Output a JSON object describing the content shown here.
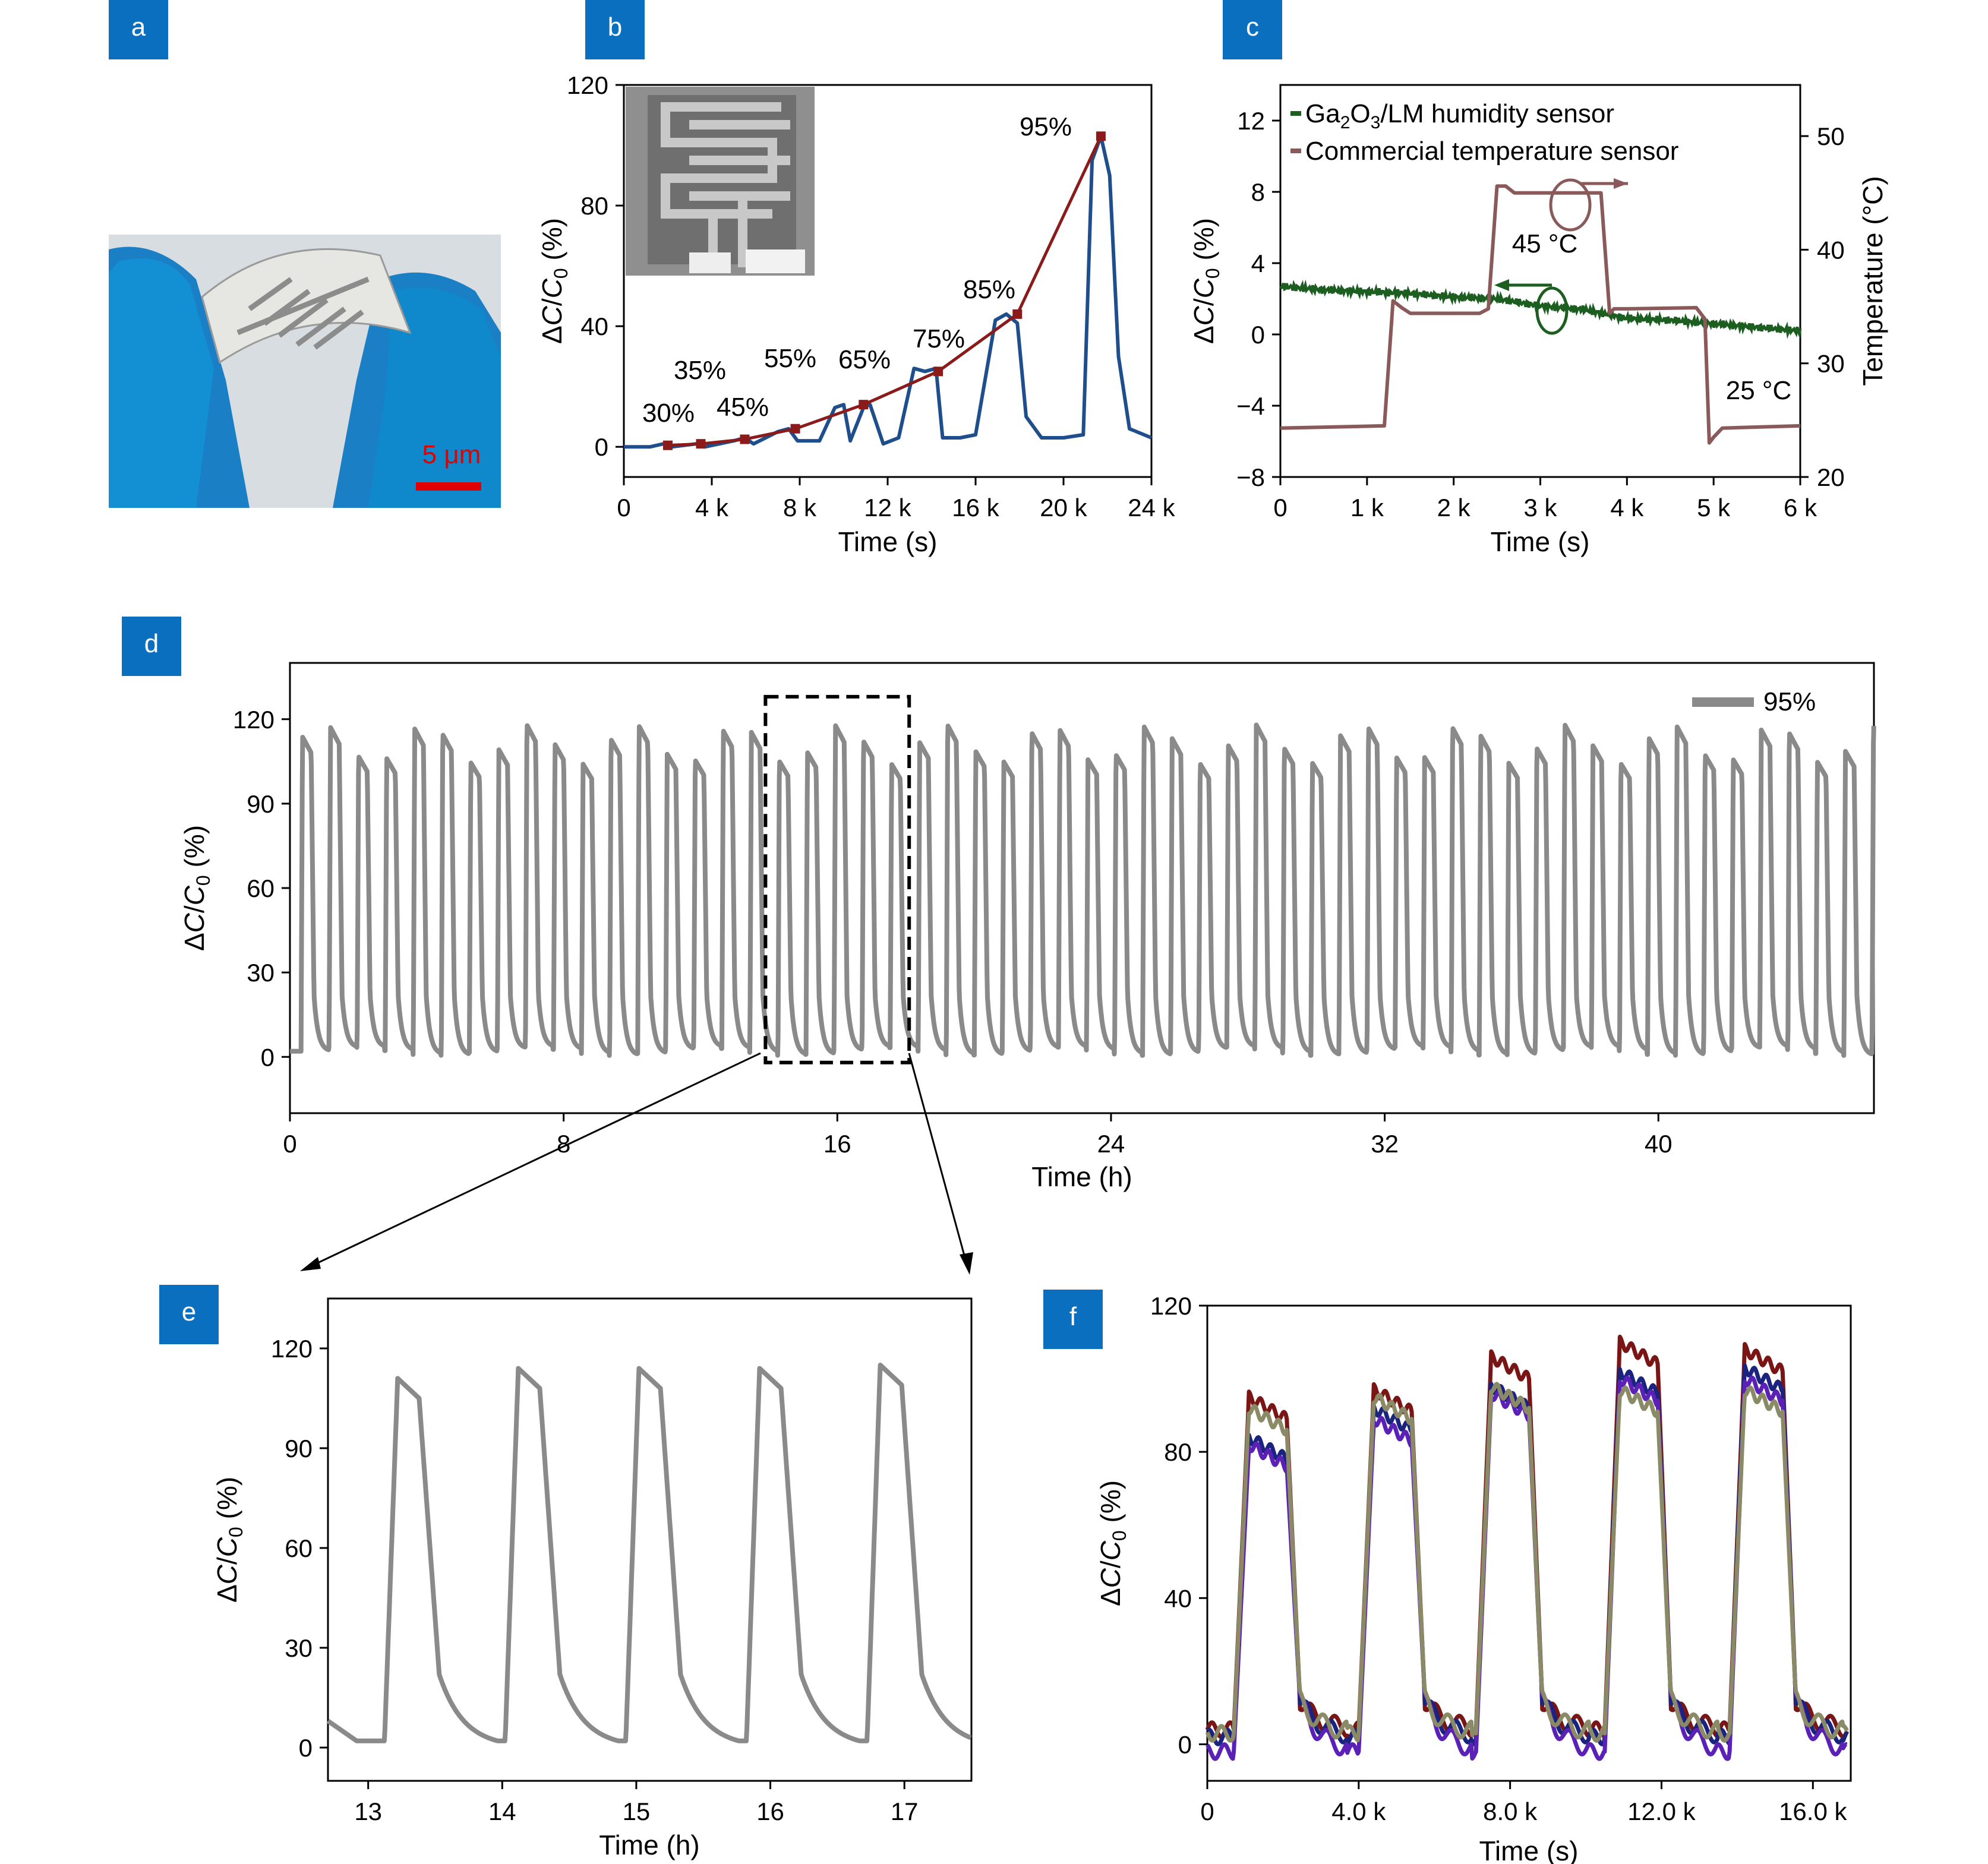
{
  "panel_labels": [
    "a",
    "b",
    "c",
    "d",
    "e",
    "f"
  ],
  "photo": {
    "scale_label": "5 μm"
  },
  "colors": {
    "badge": "#0b6fc0",
    "b_line": "#1f4e8c",
    "b_fit": "#8b1a1a",
    "c_humidity": "#1b5e20",
    "c_temp": "#8a5a5a",
    "grey": "#8a8a8a",
    "f1": "#7a1515",
    "f2": "#1a237e",
    "f3": "#5b21b6",
    "f4": "#8a8a66"
  },
  "chart_data": [
    {
      "panel": "b",
      "type": "line",
      "xlabel": "Time (s)",
      "ylabel": "ΔC/C0 (%)",
      "xticks": [
        "0",
        "4 k",
        "8 k",
        "12 k",
        "16 k",
        "20 k",
        "24 k"
      ],
      "yticks": [
        "0",
        "40",
        "80",
        "120"
      ],
      "xlim": [
        0,
        24000
      ],
      "ylim": [
        -10,
        120
      ],
      "annotations": [
        "30%",
        "35%",
        "45%",
        "55%",
        "65%",
        "75%",
        "85%",
        "95%"
      ],
      "series": [
        {
          "role": "response",
          "x": [
            0,
            1200,
            1800,
            2200,
            3300,
            3700,
            5000,
            5500,
            5900,
            7000,
            7500,
            7900,
            8900,
            9600,
            10000,
            10300,
            10900,
            11200,
            11800,
            12500,
            13200,
            13700,
            14200,
            14500,
            15300,
            16000,
            16900,
            17400,
            17900,
            18300,
            19000,
            20000,
            20900,
            21300,
            21700,
            22100,
            22500,
            23000,
            24000
          ],
          "y": [
            0,
            0,
            1,
            0,
            1,
            0,
            2,
            3,
            1,
            5,
            6,
            2,
            2,
            13,
            14,
            2,
            13,
            14,
            1,
            3,
            26,
            25,
            26,
            3,
            3,
            4,
            42,
            44,
            41,
            10,
            3,
            3,
            4,
            95,
            103,
            90,
            30,
            6,
            3
          ]
        },
        {
          "role": "fit",
          "x": [
            2000,
            3500,
            5500,
            7800,
            10900,
            14300,
            17900,
            21700
          ],
          "y": [
            0.5,
            1,
            2.5,
            6,
            14,
            25,
            44,
            103
          ]
        }
      ]
    },
    {
      "panel": "c",
      "type": "line",
      "xlabel": "Time (s)",
      "ylabel": "ΔC/C0 (%)",
      "y2label": "Temperature (°C)",
      "xticks": [
        "0",
        "1 k",
        "2 k",
        "3 k",
        "4 k",
        "5 k",
        "6 k"
      ],
      "yticks": [
        "−8",
        "−4",
        "0",
        "4",
        "8",
        "12"
      ],
      "y2ticks": [
        "20",
        "30",
        "40",
        "50"
      ],
      "xlim": [
        0,
        6000
      ],
      "ylim": [
        -8,
        14
      ],
      "y2lim": [
        20,
        54.5
      ],
      "legend": [
        "Ga2O3/LM humidity sensor",
        "Commercial temperature sensor"
      ],
      "legend_position": "top-left",
      "annotations": [
        "45 °C",
        "25 °C"
      ],
      "series": [
        {
          "name": "Ga2O3/LM humidity sensor",
          "axis": "left",
          "x": [
            0,
            500,
            1000,
            1500,
            2000,
            2500,
            3000,
            3500,
            4000,
            4500,
            5000,
            5500,
            6000
          ],
          "y": [
            2.7,
            2.5,
            2.4,
            2.3,
            2.1,
            2.0,
            1.6,
            1.4,
            0.9,
            0.8,
            0.6,
            0.4,
            0.2
          ]
        },
        {
          "name": "Commercial temperature sensor",
          "axis": "right",
          "x": [
            0,
            1200,
            1300,
            1400,
            1500,
            2300,
            2400,
            2500,
            2600,
            2700,
            3700,
            3800,
            3850,
            4000,
            4800,
            4900,
            4950,
            5000,
            5100,
            6000
          ],
          "y": [
            24.3,
            24.5,
            35.5,
            34.9,
            34.4,
            34.4,
            34.8,
            45.6,
            45.6,
            45.0,
            45.0,
            34.4,
            34.8,
            34.8,
            34.9,
            33.9,
            23.0,
            23.5,
            24.3,
            24.5
          ]
        }
      ]
    },
    {
      "panel": "d",
      "type": "line",
      "xlabel": "Time (h)",
      "ylabel": "ΔC/C0 (%)",
      "xticks": [
        "0",
        "8",
        "16",
        "24",
        "32",
        "40"
      ],
      "yticks": [
        "0",
        "30",
        "60",
        "90",
        "120"
      ],
      "xlim": [
        0,
        46.3
      ],
      "ylim": [
        -20,
        140
      ],
      "legend": [
        "95%"
      ],
      "legend_position": "top-right",
      "zoom_box_x": [
        13.9,
        18.1
      ],
      "series": [
        {
          "name": "95%",
          "period_h": 0.82,
          "first_peak_h": 0.35,
          "n_cycles": 56,
          "peak_min": 104,
          "peak_max": 118,
          "baseline": 2
        }
      ]
    },
    {
      "panel": "e",
      "type": "line",
      "xlabel": "Time (h)",
      "ylabel": "ΔC/C0 (%)",
      "xticks": [
        "13",
        "14",
        "15",
        "16",
        "17"
      ],
      "yticks": [
        "0",
        "30",
        "60",
        "90",
        "120"
      ],
      "xlim": [
        12.7,
        17.5
      ],
      "ylim": [
        -10,
        135
      ],
      "series": [
        {
          "peak_times_h": [
            13.25,
            14.15,
            15.05,
            15.95,
            16.85
          ],
          "peaks": [
            111,
            114,
            114,
            114,
            115
          ],
          "baseline": 2
        }
      ]
    },
    {
      "panel": "f",
      "type": "line",
      "xlabel": "Time (s)",
      "ylabel": "ΔC/C0 (%)",
      "xticks": [
        "0",
        "4.0 k",
        "8.0 k",
        "12.0 k",
        "16.0 k"
      ],
      "yticks": [
        "0",
        "40",
        "80",
        "120"
      ],
      "xlim": [
        0,
        17000
      ],
      "ylim": [
        -10,
        120
      ],
      "series": [
        {
          "peaks": [
            95,
            97,
            106,
            110,
            108
          ],
          "baseline": 4
        },
        {
          "peaks": [
            84,
            92,
            98,
            102,
            103
          ],
          "baseline": 2
        },
        {
          "peaks": [
            82,
            89,
            96,
            100,
            100
          ],
          "baseline": -2
        },
        {
          "peaks": [
            92,
            95,
            98,
            97,
            97
          ],
          "baseline": 3
        }
      ]
    }
  ]
}
